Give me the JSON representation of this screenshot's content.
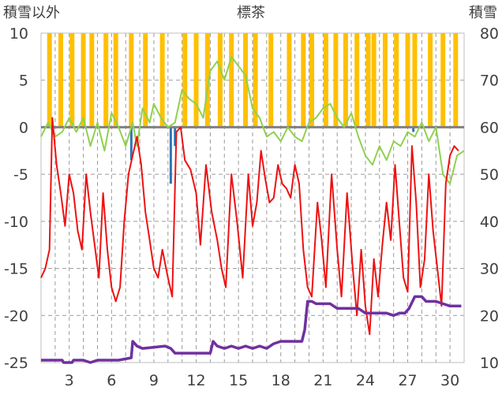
{
  "chart_data": {
    "type": "line",
    "title": "標茶",
    "y_left_label": "積雪以外",
    "y_right_label": "積雪",
    "y_left_range": [
      -25,
      10
    ],
    "y_left_ticks": [
      "10",
      "5",
      "0",
      "-5",
      "-10",
      "-15",
      "-20",
      "-25"
    ],
    "y_right_range": [
      10,
      80
    ],
    "y_right_ticks": [
      "80",
      "70",
      "60",
      "50",
      "40",
      "30",
      "20",
      "10"
    ],
    "x_range": [
      1,
      31
    ],
    "x_ticks": [
      "3",
      "6",
      "9",
      "12",
      "15",
      "18",
      "21",
      "24",
      "27",
      "30"
    ],
    "grid": "dashed",
    "series": [
      {
        "key": "temp_max",
        "color": "#8fd14f",
        "axis": "left"
      },
      {
        "key": "temp_min",
        "color": "#ee1111",
        "axis": "left"
      },
      {
        "key": "sunshine",
        "color": "#ffc000",
        "axis": "left",
        "style": "bars"
      },
      {
        "key": "precip",
        "color": "#2e75b6",
        "axis": "left",
        "style": "bars"
      },
      {
        "key": "snow_depth",
        "color": "#7030a0",
        "axis": "right"
      }
    ],
    "sunshine_days": [
      1.6,
      2.4,
      3.2,
      4.0,
      4.6,
      5.6,
      6.3,
      7.4,
      8.4,
      9.6,
      11.2,
      12.0,
      12.8,
      13.7,
      14.5,
      15.5,
      16.2,
      17.3,
      18.6,
      19.6,
      20.2,
      21.2,
      21.9,
      22.6,
      23.4,
      24.2,
      24.6,
      25.4,
      26.2,
      27.0,
      27.5,
      28.6,
      29.5,
      30.4
    ],
    "precip_points": [
      [
        7.4,
        -3.5
      ],
      [
        10.2,
        -6.0
      ],
      [
        10.5,
        -2.0
      ],
      [
        27.4,
        -0.5
      ]
    ],
    "temp_max_points": [
      [
        1.0,
        -1.0
      ],
      [
        1.5,
        0.5
      ],
      [
        2.0,
        -1.0
      ],
      [
        2.5,
        -0.5
      ],
      [
        3.0,
        1.0
      ],
      [
        3.5,
        -0.5
      ],
      [
        4.0,
        1.0
      ],
      [
        4.5,
        -2.0
      ],
      [
        5.0,
        0.5
      ],
      [
        5.5,
        -2.5
      ],
      [
        6.0,
        1.5
      ],
      [
        6.5,
        0.0
      ],
      [
        7.0,
        -2.0
      ],
      [
        7.5,
        0.5
      ],
      [
        7.8,
        -2.0
      ],
      [
        8.2,
        2.0
      ],
      [
        8.7,
        0.5
      ],
      [
        9.0,
        2.5
      ],
      [
        9.5,
        1.0
      ],
      [
        10.0,
        0.0
      ],
      [
        10.5,
        0.5
      ],
      [
        11.0,
        4.0
      ],
      [
        11.5,
        3.0
      ],
      [
        12.0,
        2.5
      ],
      [
        12.5,
        1.0
      ],
      [
        13.0,
        6.0
      ],
      [
        13.5,
        7.0
      ],
      [
        14.0,
        5.0
      ],
      [
        14.5,
        7.5
      ],
      [
        15.0,
        6.5
      ],
      [
        15.5,
        5.5
      ],
      [
        16.0,
        2.0
      ],
      [
        16.5,
        1.0
      ],
      [
        17.0,
        -1.0
      ],
      [
        17.5,
        -0.5
      ],
      [
        18.0,
        -1.5
      ],
      [
        18.5,
        0.0
      ],
      [
        19.0,
        -1.0
      ],
      [
        19.5,
        -1.5
      ],
      [
        20.0,
        0.5
      ],
      [
        20.5,
        1.0
      ],
      [
        21.0,
        2.0
      ],
      [
        21.5,
        2.5
      ],
      [
        22.0,
        1.0
      ],
      [
        22.5,
        0.0
      ],
      [
        23.0,
        1.5
      ],
      [
        23.5,
        -1.0
      ],
      [
        24.0,
        -3.0
      ],
      [
        24.5,
        -4.0
      ],
      [
        25.0,
        -2.0
      ],
      [
        25.5,
        -3.5
      ],
      [
        26.0,
        -1.5
      ],
      [
        26.5,
        -2.0
      ],
      [
        27.0,
        -0.5
      ],
      [
        27.5,
        -1.0
      ],
      [
        28.0,
        0.5
      ],
      [
        28.5,
        -1.5
      ],
      [
        29.0,
        0.0
      ],
      [
        29.5,
        -5.0
      ],
      [
        30.0,
        -6.0
      ],
      [
        30.5,
        -3.0
      ],
      [
        31.0,
        -2.5
      ]
    ],
    "temp_min_points": [
      [
        1.0,
        -16.0
      ],
      [
        1.3,
        -15.0
      ],
      [
        1.6,
        -13.0
      ],
      [
        1.8,
        1.0
      ],
      [
        2.1,
        -4.0
      ],
      [
        2.4,
        -7.0
      ],
      [
        2.7,
        -10.5
      ],
      [
        3.0,
        -5.0
      ],
      [
        3.3,
        -7.0
      ],
      [
        3.6,
        -11.0
      ],
      [
        3.9,
        -13.0
      ],
      [
        4.2,
        -5.0
      ],
      [
        4.5,
        -9.0
      ],
      [
        4.8,
        -12.5
      ],
      [
        5.1,
        -16.0
      ],
      [
        5.4,
        -7.0
      ],
      [
        5.7,
        -13.0
      ],
      [
        6.0,
        -17.0
      ],
      [
        6.3,
        -18.5
      ],
      [
        6.6,
        -17.0
      ],
      [
        6.9,
        -10.0
      ],
      [
        7.2,
        -5.0
      ],
      [
        7.5,
        -3.0
      ],
      [
        7.8,
        -1.0
      ],
      [
        8.1,
        -4.0
      ],
      [
        8.4,
        -9.0
      ],
      [
        8.7,
        -12.0
      ],
      [
        9.0,
        -15.0
      ],
      [
        9.3,
        -16.0
      ],
      [
        9.6,
        -13.0
      ],
      [
        10.0,
        -16.0
      ],
      [
        10.3,
        -18.0
      ],
      [
        10.6,
        -0.5
      ],
      [
        10.9,
        0.0
      ],
      [
        11.2,
        -3.5
      ],
      [
        11.6,
        -4.5
      ],
      [
        12.0,
        -7.0
      ],
      [
        12.3,
        -12.5
      ],
      [
        12.7,
        -4.0
      ],
      [
        13.1,
        -9.0
      ],
      [
        13.5,
        -12.0
      ],
      [
        13.8,
        -15.0
      ],
      [
        14.1,
        -17.0
      ],
      [
        14.5,
        -5.0
      ],
      [
        14.9,
        -10.0
      ],
      [
        15.3,
        -16.0
      ],
      [
        15.7,
        -5.0
      ],
      [
        16.0,
        -10.5
      ],
      [
        16.3,
        -8.0
      ],
      [
        16.6,
        -2.5
      ],
      [
        16.9,
        -5.5
      ],
      [
        17.2,
        -8.0
      ],
      [
        17.5,
        -7.5
      ],
      [
        17.8,
        -4.0
      ],
      [
        18.1,
        -6.0
      ],
      [
        18.4,
        -6.5
      ],
      [
        18.7,
        -7.5
      ],
      [
        19.0,
        -4.0
      ],
      [
        19.3,
        -6.0
      ],
      [
        19.6,
        -13.0
      ],
      [
        19.9,
        -17.0
      ],
      [
        20.2,
        -18.0
      ],
      [
        20.6,
        -8.0
      ],
      [
        20.9,
        -12.0
      ],
      [
        21.2,
        -17.0
      ],
      [
        21.6,
        -5.0
      ],
      [
        22.0,
        -13.0
      ],
      [
        22.3,
        -18.0
      ],
      [
        22.7,
        -7.0
      ],
      [
        23.1,
        -15.0
      ],
      [
        23.4,
        -20.0
      ],
      [
        23.7,
        -13.0
      ],
      [
        24.0,
        -19.0
      ],
      [
        24.3,
        -22.0
      ],
      [
        24.6,
        -14.0
      ],
      [
        24.9,
        -18.0
      ],
      [
        25.2,
        -12.5
      ],
      [
        25.5,
        -8.0
      ],
      [
        25.8,
        -12.0
      ],
      [
        26.1,
        -4.0
      ],
      [
        26.4,
        -10.0
      ],
      [
        26.7,
        -16.0
      ],
      [
        27.0,
        -17.5
      ],
      [
        27.3,
        -2.0
      ],
      [
        27.6,
        -8.0
      ],
      [
        27.9,
        -17.0
      ],
      [
        28.2,
        -14.0
      ],
      [
        28.5,
        -5.0
      ],
      [
        28.8,
        -11.0
      ],
      [
        29.1,
        -15.0
      ],
      [
        29.4,
        -19.0
      ],
      [
        29.7,
        -6.0
      ],
      [
        30.0,
        -3.0
      ],
      [
        30.3,
        -2.0
      ],
      [
        30.6,
        -2.5
      ]
    ],
    "snow_depth_points": [
      [
        1.0,
        10.5
      ],
      [
        2.5,
        10.5
      ],
      [
        2.6,
        10.0
      ],
      [
        3.2,
        10.0
      ],
      [
        3.3,
        10.5
      ],
      [
        4.0,
        10.5
      ],
      [
        4.5,
        10.0
      ],
      [
        5.0,
        10.5
      ],
      [
        6.5,
        10.5
      ],
      [
        7.4,
        11.0
      ],
      [
        7.5,
        14.5
      ],
      [
        7.8,
        13.5
      ],
      [
        8.2,
        13.0
      ],
      [
        9.8,
        13.5
      ],
      [
        10.2,
        13.0
      ],
      [
        10.5,
        12.0
      ],
      [
        11.0,
        12.0
      ],
      [
        12.8,
        12.0
      ],
      [
        13.0,
        12.0
      ],
      [
        13.2,
        14.5
      ],
      [
        13.5,
        13.5
      ],
      [
        14.0,
        13.0
      ],
      [
        14.5,
        13.5
      ],
      [
        15.0,
        13.0
      ],
      [
        15.5,
        13.5
      ],
      [
        16.0,
        13.0
      ],
      [
        16.5,
        13.5
      ],
      [
        17.0,
        13.0
      ],
      [
        17.5,
        14.0
      ],
      [
        18.0,
        14.5
      ],
      [
        19.5,
        14.5
      ],
      [
        19.7,
        17.0
      ],
      [
        19.9,
        23.0
      ],
      [
        20.2,
        23.0
      ],
      [
        20.5,
        22.5
      ],
      [
        21.5,
        22.5
      ],
      [
        22.0,
        21.5
      ],
      [
        23.5,
        21.5
      ],
      [
        24.0,
        20.5
      ],
      [
        25.5,
        20.5
      ],
      [
        26.0,
        20.0
      ],
      [
        26.4,
        20.5
      ],
      [
        26.8,
        20.5
      ],
      [
        27.1,
        21.5
      ],
      [
        27.5,
        24.0
      ],
      [
        28.0,
        24.0
      ],
      [
        28.3,
        23.0
      ],
      [
        29.0,
        23.0
      ],
      [
        29.5,
        22.5
      ],
      [
        30.0,
        22.0
      ],
      [
        30.8,
        22.0
      ]
    ]
  }
}
